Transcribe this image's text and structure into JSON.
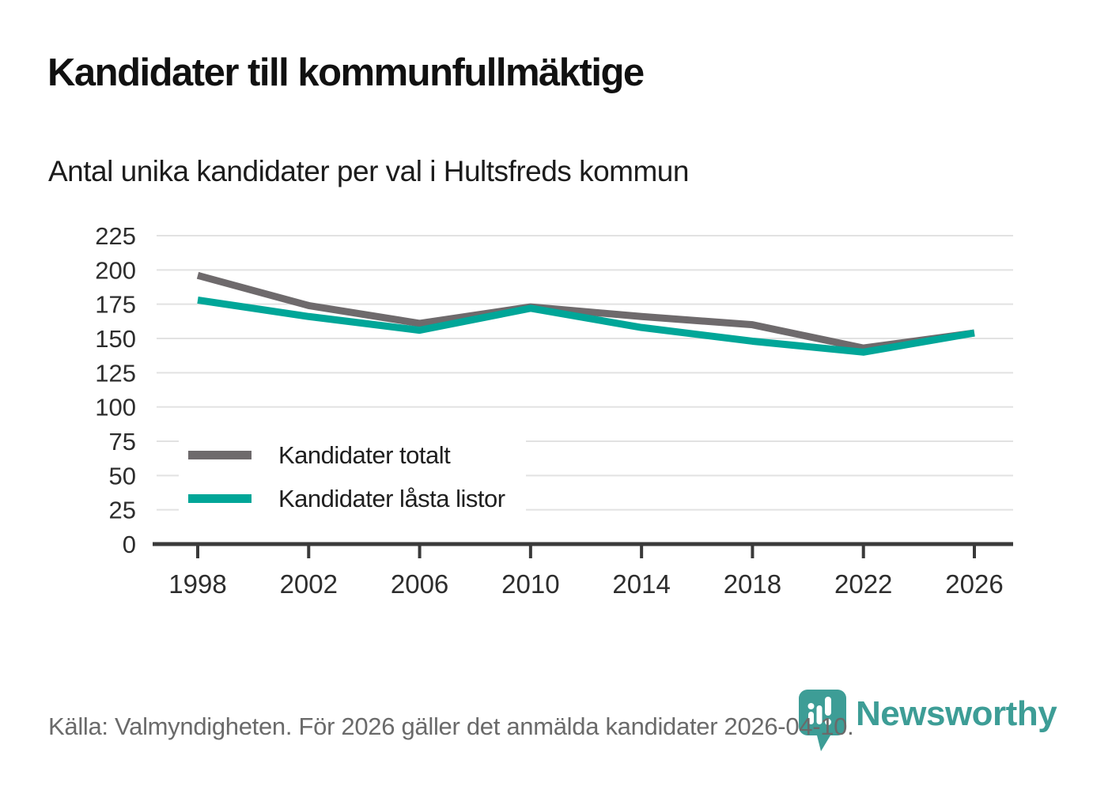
{
  "header": {
    "title": "Kandidater till kommunfullmäktige",
    "subtitle": "Antal unika kandidater per val i Hultsfreds kommun"
  },
  "chart_data": {
    "type": "line",
    "title": "Kandidater till kommunfullmäktige",
    "subtitle": "Antal unika kandidater per val i Hultsfreds kommun",
    "categories": [
      "1998",
      "2002",
      "2006",
      "2010",
      "2014",
      "2018",
      "2022",
      "2026"
    ],
    "series": [
      {
        "name": "Kandidater totalt",
        "color": "#6e6a6c",
        "values": [
          196,
          174,
          161,
          173,
          166,
          160,
          143,
          154
        ]
      },
      {
        "name": "Kandidater låsta listor",
        "color": "#00a698",
        "values": [
          178,
          166,
          156,
          172,
          158,
          148,
          140,
          154
        ]
      }
    ],
    "xlabel": "",
    "ylabel": "",
    "ylim": [
      0,
      225
    ],
    "ytick_step": 25,
    "grid": true,
    "legend_position": "inside-lower-left"
  },
  "footer": {
    "source": "Källa: Valmyndigheten. För 2026 gäller det anmälda kandidater 2026-04-10."
  },
  "brand": {
    "name": "Newsworthy",
    "color": "#3d9d96"
  },
  "colors": {
    "gridline": "#e2e2e2",
    "axis": "#3a3a3a",
    "tick_label": "#2d2d2d",
    "source_text": "#6a6a6a"
  }
}
